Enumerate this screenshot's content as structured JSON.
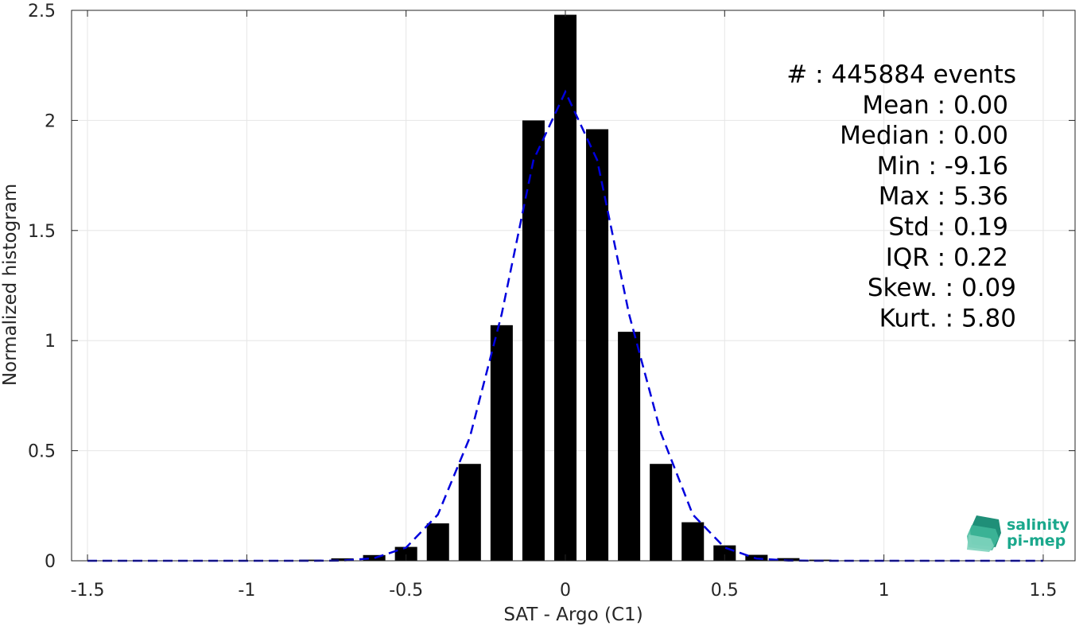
{
  "chart_data": {
    "type": "bar",
    "xlabel": "SAT - Argo (C1)",
    "ylabel": "Normalized histogram",
    "xlim": [
      -1.55,
      1.6
    ],
    "ylim": [
      0,
      2.5
    ],
    "x_ticks": [
      -1.5,
      -1,
      -0.5,
      0,
      0.5,
      1,
      1.5
    ],
    "x_tick_labels": [
      "-1.5",
      "-1",
      "-0.5",
      "0",
      "0.5",
      "1",
      "1.5"
    ],
    "y_ticks": [
      0,
      0.5,
      1,
      1.5,
      2,
      2.5
    ],
    "y_tick_labels": [
      "0",
      "0.5",
      "1",
      "1.5",
      "2",
      "2.5"
    ],
    "grid": true,
    "bar_color": "#000000",
    "bin_width": 0.1,
    "bars": {
      "x": [
        -1.5,
        -1.4,
        -1.3,
        -1.2,
        -1.1,
        -1.0,
        -0.9,
        -0.8,
        -0.7,
        -0.6,
        -0.5,
        -0.4,
        -0.3,
        -0.2,
        -0.1,
        0.0,
        0.1,
        0.2,
        0.3,
        0.4,
        0.5,
        0.6,
        0.7,
        0.8,
        0.9,
        1.0,
        1.1,
        1.2,
        1.3,
        1.4,
        1.5
      ],
      "values": [
        0.001,
        0.001,
        0.001,
        0.001,
        0.001,
        0.001,
        0.002,
        0.005,
        0.011,
        0.026,
        0.063,
        0.17,
        0.44,
        1.07,
        2.0,
        2.48,
        1.96,
        1.04,
        0.44,
        0.175,
        0.07,
        0.027,
        0.012,
        0.005,
        0.002,
        0.001,
        0.001,
        0.001,
        0.001,
        0.001,
        0.001
      ]
    },
    "fit_curve": {
      "color": "#0000dd",
      "style": "dashed",
      "x": [
        -1.5,
        -1.4,
        -1.3,
        -1.2,
        -1.1,
        -1.0,
        -0.9,
        -0.8,
        -0.7,
        -0.6,
        -0.5,
        -0.4,
        -0.3,
        -0.2,
        -0.1,
        0.0,
        0.1,
        0.2,
        0.3,
        0.4,
        0.5,
        0.6,
        0.7,
        0.8,
        0.9,
        1.0,
        1.1,
        1.2,
        1.3,
        1.4,
        1.5
      ],
      "values": [
        0,
        0,
        0,
        0,
        0,
        0,
        0,
        0,
        0.001,
        0.012,
        0.06,
        0.21,
        0.56,
        1.12,
        1.82,
        2.13,
        1.82,
        1.12,
        0.58,
        0.21,
        0.06,
        0.01,
        0.001,
        0,
        0,
        0,
        0,
        0,
        0,
        0,
        0
      ]
    },
    "stats": [
      "#  : 445884 events",
      "Mean : 0.00",
      "Median : 0.00",
      "Min : -9.16",
      "Max : 5.36",
      "Std : 0.19",
      "IQR : 0.22",
      "Skew. : 0.09",
      "Kurt. : 5.80"
    ]
  },
  "logo": {
    "line1": "salinity",
    "line2": "pi-mep",
    "color": "#1aa88c"
  }
}
